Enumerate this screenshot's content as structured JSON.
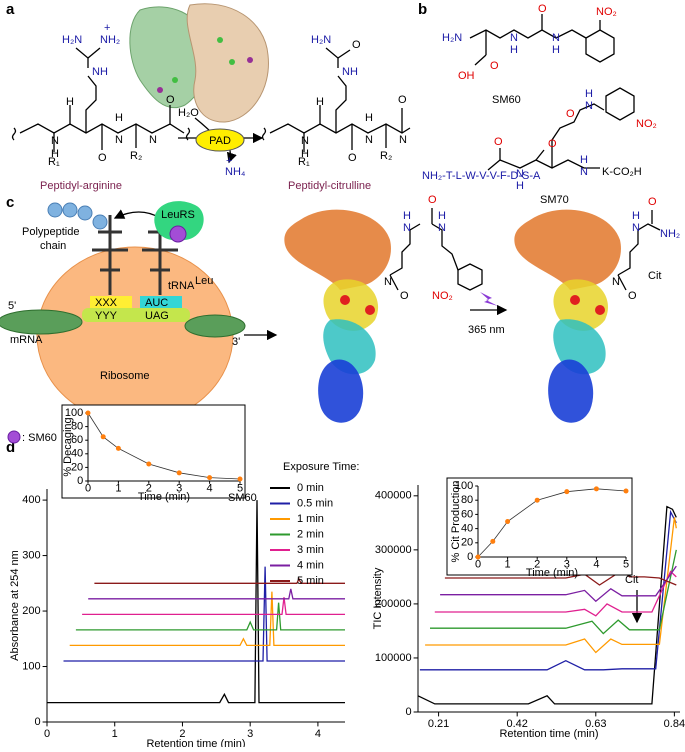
{
  "panel_labels": [
    "a",
    "b",
    "c",
    "d"
  ],
  "panel_a": {
    "reactant_atoms": [
      "H₂N",
      "NH₂",
      "+",
      "NH",
      "N",
      "H",
      "H",
      "N",
      "O",
      "O",
      "N",
      "H",
      "R₁",
      "R₂"
    ],
    "product_atoms": [
      "H₂N",
      "O",
      "NH",
      "N",
      "H",
      "H",
      "N",
      "O",
      "O",
      "N",
      "H",
      "R₁",
      "R₂"
    ],
    "reagent": "H₂O",
    "enzyme": "PAD",
    "byproduct": "NH₄",
    "byproduct_charge": "+",
    "reactant": "Peptidyl-arginine",
    "product": "Peptidyl-citrulline"
  },
  "panel_b": {
    "sm60_atoms": [
      "H₂N",
      "O",
      "OH",
      "N",
      "H",
      "O",
      "N",
      "H",
      "NO₂"
    ],
    "sm60_label": "SM60",
    "sm70_sequence": "NH₂-T-L-W-V-V-F-D-S-A",
    "sm70_atoms": [
      "O",
      "N",
      "H",
      "O",
      "N",
      "H",
      "N",
      "H",
      "O",
      "NO₂"
    ],
    "sm70_end": "K-CO₂H",
    "sm70_label": "SM70"
  },
  "panel_c": {
    "polypeptide": [
      "Polypeptide",
      "chain"
    ],
    "synthetase": "LeuRS",
    "trna": "tRNA",
    "trna_sup": "Leu",
    "codon_left": "XXX",
    "anticodon_left": "YYY",
    "anticodon": "AUC",
    "codon": "UAG",
    "five_prime": "5'",
    "three_prime": "3'",
    "mrna": "mRNA",
    "ribosome": "Ribosome",
    "legend": ": SM60",
    "light": "365 nm",
    "caged_atoms": [
      "H",
      "N",
      "H",
      "N",
      "O",
      "N",
      "O",
      "NO₂"
    ],
    "cit_atoms": [
      "H",
      "N",
      "NH₂",
      "O",
      "N",
      "O"
    ],
    "cit_label": "Cit"
  },
  "chart_data": [
    {
      "type": "line",
      "xlabel": "Retention time (min)",
      "ylabel": "Absorbance at 254 nm",
      "xlim": [
        0,
        4.4
      ],
      "ylim": [
        0,
        420
      ],
      "xticks": [
        0,
        1,
        2,
        3,
        4
      ],
      "yticks": [
        0,
        100,
        200,
        300,
        400
      ],
      "legend_title": "Exposure Time:",
      "annotation": "SM60",
      "series": [
        {
          "name": "0 min",
          "color": "#000000",
          "x": [
            0,
            2.55,
            2.62,
            2.68,
            3.07,
            3.1,
            3.13,
            4.4
          ],
          "values": [
            35,
            35,
            50,
            35,
            35,
            400,
            35,
            35
          ]
        },
        {
          "name": "0.5 min",
          "color": "#1f1fa6",
          "x": [
            0.244,
            3.19,
            3.22,
            3.25,
            4.4
          ],
          "values": [
            110,
            110,
            280,
            110,
            110
          ]
        },
        {
          "name": "1 min",
          "color": "#ff9a00",
          "x": [
            0.335,
            2.85,
            2.9,
            2.95,
            3.29,
            3.32,
            3.35,
            4.4
          ],
          "values": [
            138,
            138,
            150,
            138,
            138,
            235,
            138,
            138
          ]
        },
        {
          "name": "2 min",
          "color": "#2e9a2e",
          "x": [
            0.427,
            2.95,
            3.0,
            3.05,
            3.39,
            3.42,
            3.45,
            4.4
          ],
          "values": [
            166,
            166,
            180,
            166,
            166,
            215,
            166,
            166
          ]
        },
        {
          "name": "3 min",
          "color": "#e0208f",
          "x": [
            0.518,
            3.47,
            3.5,
            3.53,
            4.4
          ],
          "values": [
            194,
            194,
            225,
            194,
            194
          ]
        },
        {
          "name": "4 min",
          "color": "#7b1fa2",
          "x": [
            0.609,
            3.57,
            3.6,
            3.63,
            4.4
          ],
          "values": [
            222,
            222,
            240,
            222,
            222
          ]
        },
        {
          "name": "5 min",
          "color": "#8b1a1a",
          "x": [
            0.7,
            3.69,
            3.72,
            3.75,
            4.4
          ],
          "values": [
            250,
            250,
            258,
            250,
            250
          ]
        }
      ]
    },
    {
      "type": "line",
      "xlabel": "Retention time (min)",
      "ylabel": "TIC Intensity",
      "xlim": [
        0.155,
        0.855
      ],
      "ylim": [
        0,
        420000
      ],
      "xticks": [
        0.21,
        0.42,
        0.63,
        0.84
      ],
      "yticks": [
        0,
        100000,
        200000,
        300000,
        400000
      ],
      "annotation": "Cit",
      "series": [
        {
          "name": "0 min",
          "color": "#000000",
          "x": [
            0.155,
            0.2,
            0.45,
            0.5,
            0.52,
            0.55,
            0.78,
            0.82,
            0.835,
            0.845
          ],
          "values": [
            30000,
            15000,
            15000,
            30000,
            15000,
            15000,
            15000,
            380000,
            375000,
            360000
          ]
        },
        {
          "name": "0.5 min",
          "color": "#1f1fa6",
          "x": [
            0.16,
            0.5,
            0.55,
            0.6,
            0.65,
            0.7,
            0.79,
            0.83,
            0.845
          ],
          "values": [
            78000,
            78000,
            95000,
            78000,
            78000,
            80000,
            80000,
            370000,
            350000
          ]
        },
        {
          "name": "1 min",
          "color": "#ff9a00",
          "x": [
            0.174,
            0.55,
            0.6,
            0.63,
            0.67,
            0.7,
            0.8,
            0.84,
            0.845
          ],
          "values": [
            124000,
            124000,
            135000,
            110000,
            135000,
            125000,
            125000,
            360000,
            340000
          ]
        },
        {
          "name": "2 min",
          "color": "#2e9a2e",
          "x": [
            0.187,
            0.55,
            0.62,
            0.65,
            0.69,
            0.72,
            0.8,
            0.845
          ],
          "values": [
            155000,
            155000,
            168000,
            145000,
            170000,
            152000,
            152000,
            300000
          ]
        },
        {
          "name": "3 min",
          "color": "#e0208f",
          "x": [
            0.2,
            0.55,
            0.6,
            0.63,
            0.66,
            0.7,
            0.78,
            0.83,
            0.845
          ],
          "values": [
            185000,
            185000,
            190000,
            178000,
            200000,
            185000,
            185000,
            260000,
            250000
          ]
        },
        {
          "name": "4 min",
          "color": "#7b1fa2",
          "x": [
            0.214,
            0.55,
            0.6,
            0.63,
            0.67,
            0.7,
            0.79,
            0.845
          ],
          "values": [
            217000,
            217000,
            225000,
            205000,
            228000,
            215000,
            215000,
            270000
          ]
        },
        {
          "name": "5 min",
          "color": "#8b1a1a",
          "x": [
            0.227,
            0.55,
            0.6,
            0.64,
            0.7,
            0.72,
            0.76,
            0.8,
            0.845
          ],
          "values": [
            248000,
            248000,
            255000,
            235000,
            262000,
            250000,
            250000,
            248000,
            235000
          ]
        }
      ]
    },
    {
      "type": "line",
      "frame": true,
      "markers": true,
      "xlabel": "Time (min)",
      "ylabel": "% Decaging",
      "xlim": [
        0,
        5
      ],
      "ylim": [
        0,
        100
      ],
      "xticks": [
        0,
        1,
        2,
        3,
        4,
        5
      ],
      "yticks": [
        0,
        20,
        40,
        60,
        80,
        100
      ],
      "series": [
        {
          "color": "#ff7f0e",
          "x": [
            0,
            0.5,
            1,
            2,
            3,
            4,
            5
          ],
          "values": [
            100,
            65,
            48,
            25,
            12,
            5,
            3
          ]
        }
      ]
    },
    {
      "type": "line",
      "frame": true,
      "markers": true,
      "xlabel": "Time (min)",
      "ylabel": "% Cit Production",
      "xlim": [
        0,
        5
      ],
      "ylim": [
        0,
        100
      ],
      "xticks": [
        0,
        1,
        2,
        3,
        4,
        5
      ],
      "yticks": [
        0,
        20,
        40,
        60,
        80,
        100
      ],
      "series": [
        {
          "color": "#ff7f0e",
          "x": [
            0,
            0.5,
            1,
            2,
            3,
            4,
            5
          ],
          "values": [
            0,
            22,
            50,
            80,
            92,
            96,
            93
          ]
        }
      ]
    }
  ]
}
